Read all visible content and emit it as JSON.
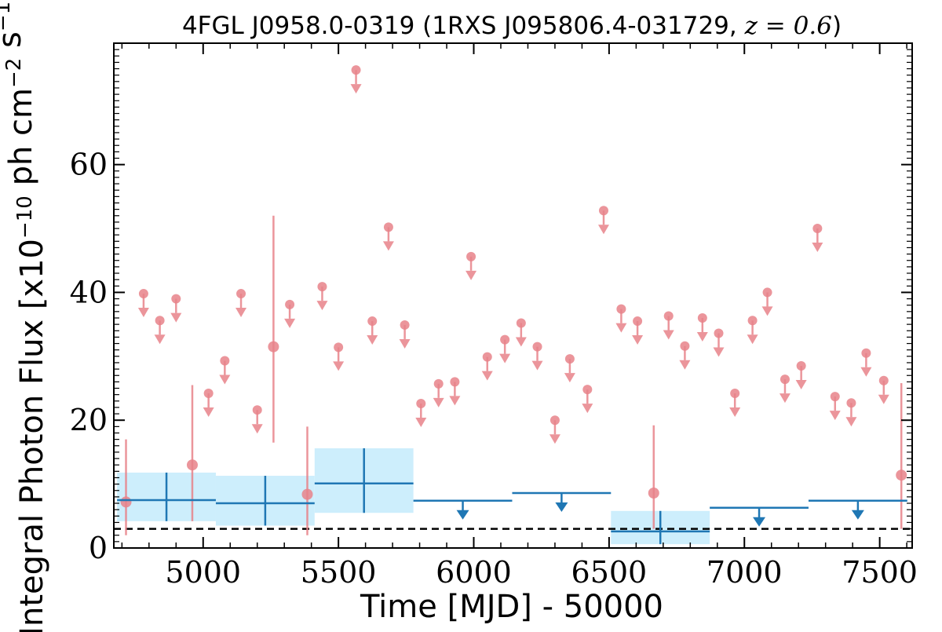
{
  "chart_data": {
    "type": "scatter",
    "title": "4FGL J0958.0-0319 (1RXS J095806.4-031729, z = 0.6)",
    "xlabel": "Time [MJD] - 50000",
    "ylabel": "Integral Photon Flux [x10^-10 ph cm^-2 s^-1]",
    "xlim": [
      4670,
      7620
    ],
    "ylim": [
      0,
      79
    ],
    "xticks": [
      5000,
      5500,
      6000,
      6500,
      7000,
      7500
    ],
    "yticks": [
      0,
      20,
      40,
      60
    ],
    "grid": false,
    "legend": "none",
    "reference_line": {
      "y": 3.0,
      "style": "dashed",
      "color": "#000000"
    },
    "colors": {
      "short_bins": "#e8838a",
      "long_bins": "#1f77b4",
      "long_bins_band": "#cdeefc"
    },
    "series": [
      {
        "bin_days": 60,
        "detections": [
          {
            "x": 4715,
            "y": 7.2,
            "ylo": 2.0,
            "yhi": 17.0
          },
          {
            "x": 4960,
            "y": 13.0,
            "ylo": 4.2,
            "yhi": 25.5
          },
          {
            "x": 5260,
            "y": 31.5,
            "ylo": 16.5,
            "yhi": 52.0
          },
          {
            "x": 5385,
            "y": 8.4,
            "ylo": 2.0,
            "yhi": 19.0
          },
          {
            "x": 6665,
            "y": 8.6,
            "ylo": 3.0,
            "yhi": 19.2
          },
          {
            "x": 7580,
            "y": 11.4,
            "ylo": 3.0,
            "yhi": 25.8
          }
        ],
        "upper_limits": [
          {
            "x": 4780,
            "y": 39.8
          },
          {
            "x": 4840,
            "y": 35.6
          },
          {
            "x": 4900,
            "y": 39.0
          },
          {
            "x": 5020,
            "y": 24.2
          },
          {
            "x": 5080,
            "y": 29.3
          },
          {
            "x": 5140,
            "y": 39.8
          },
          {
            "x": 5200,
            "y": 21.6
          },
          {
            "x": 5320,
            "y": 38.1
          },
          {
            "x": 5440,
            "y": 40.9
          },
          {
            "x": 5500,
            "y": 31.4
          },
          {
            "x": 5565,
            "y": 74.8
          },
          {
            "x": 5625,
            "y": 35.5
          },
          {
            "x": 5685,
            "y": 50.2
          },
          {
            "x": 5745,
            "y": 34.9
          },
          {
            "x": 5805,
            "y": 22.6
          },
          {
            "x": 5870,
            "y": 25.7
          },
          {
            "x": 5930,
            "y": 26.0
          },
          {
            "x": 5990,
            "y": 45.6
          },
          {
            "x": 6050,
            "y": 29.9
          },
          {
            "x": 6115,
            "y": 32.6
          },
          {
            "x": 6175,
            "y": 35.2
          },
          {
            "x": 6235,
            "y": 31.5
          },
          {
            "x": 6300,
            "y": 20.0
          },
          {
            "x": 6355,
            "y": 29.6
          },
          {
            "x": 6420,
            "y": 24.8
          },
          {
            "x": 6480,
            "y": 52.8
          },
          {
            "x": 6545,
            "y": 37.4
          },
          {
            "x": 6605,
            "y": 35.5
          },
          {
            "x": 6720,
            "y": 36.3
          },
          {
            "x": 6780,
            "y": 31.6
          },
          {
            "x": 6845,
            "y": 36.0
          },
          {
            "x": 6905,
            "y": 33.6
          },
          {
            "x": 6965,
            "y": 24.2
          },
          {
            "x": 7030,
            "y": 35.6
          },
          {
            "x": 7085,
            "y": 40.0
          },
          {
            "x": 7150,
            "y": 26.4
          },
          {
            "x": 7210,
            "y": 28.5
          },
          {
            "x": 7270,
            "y": 50.0
          },
          {
            "x": 7335,
            "y": 23.7
          },
          {
            "x": 7395,
            "y": 22.7
          },
          {
            "x": 7450,
            "y": 30.5
          },
          {
            "x": 7515,
            "y": 26.2
          }
        ]
      },
      {
        "bin_days": 365,
        "detections": [
          {
            "x0": 4682,
            "x1": 5047,
            "y": 7.5,
            "ylo": 4.2,
            "yhi": 11.8
          },
          {
            "x0": 5047,
            "x1": 5412,
            "y": 7.0,
            "ylo": 3.5,
            "yhi": 11.3
          },
          {
            "x0": 5412,
            "x1": 5777,
            "y": 10.1,
            "ylo": 5.5,
            "yhi": 15.6
          },
          {
            "x0": 6507,
            "x1": 6872,
            "y": 2.6,
            "ylo": 0.6,
            "yhi": 5.8
          }
        ],
        "upper_limits": [
          {
            "x0": 5777,
            "x1": 6142,
            "y": 7.4
          },
          {
            "x0": 6142,
            "x1": 6507,
            "y": 8.6
          },
          {
            "x0": 6872,
            "x1": 7237,
            "y": 6.3
          },
          {
            "x0": 7237,
            "x1": 7602,
            "y": 7.4
          }
        ]
      }
    ]
  }
}
